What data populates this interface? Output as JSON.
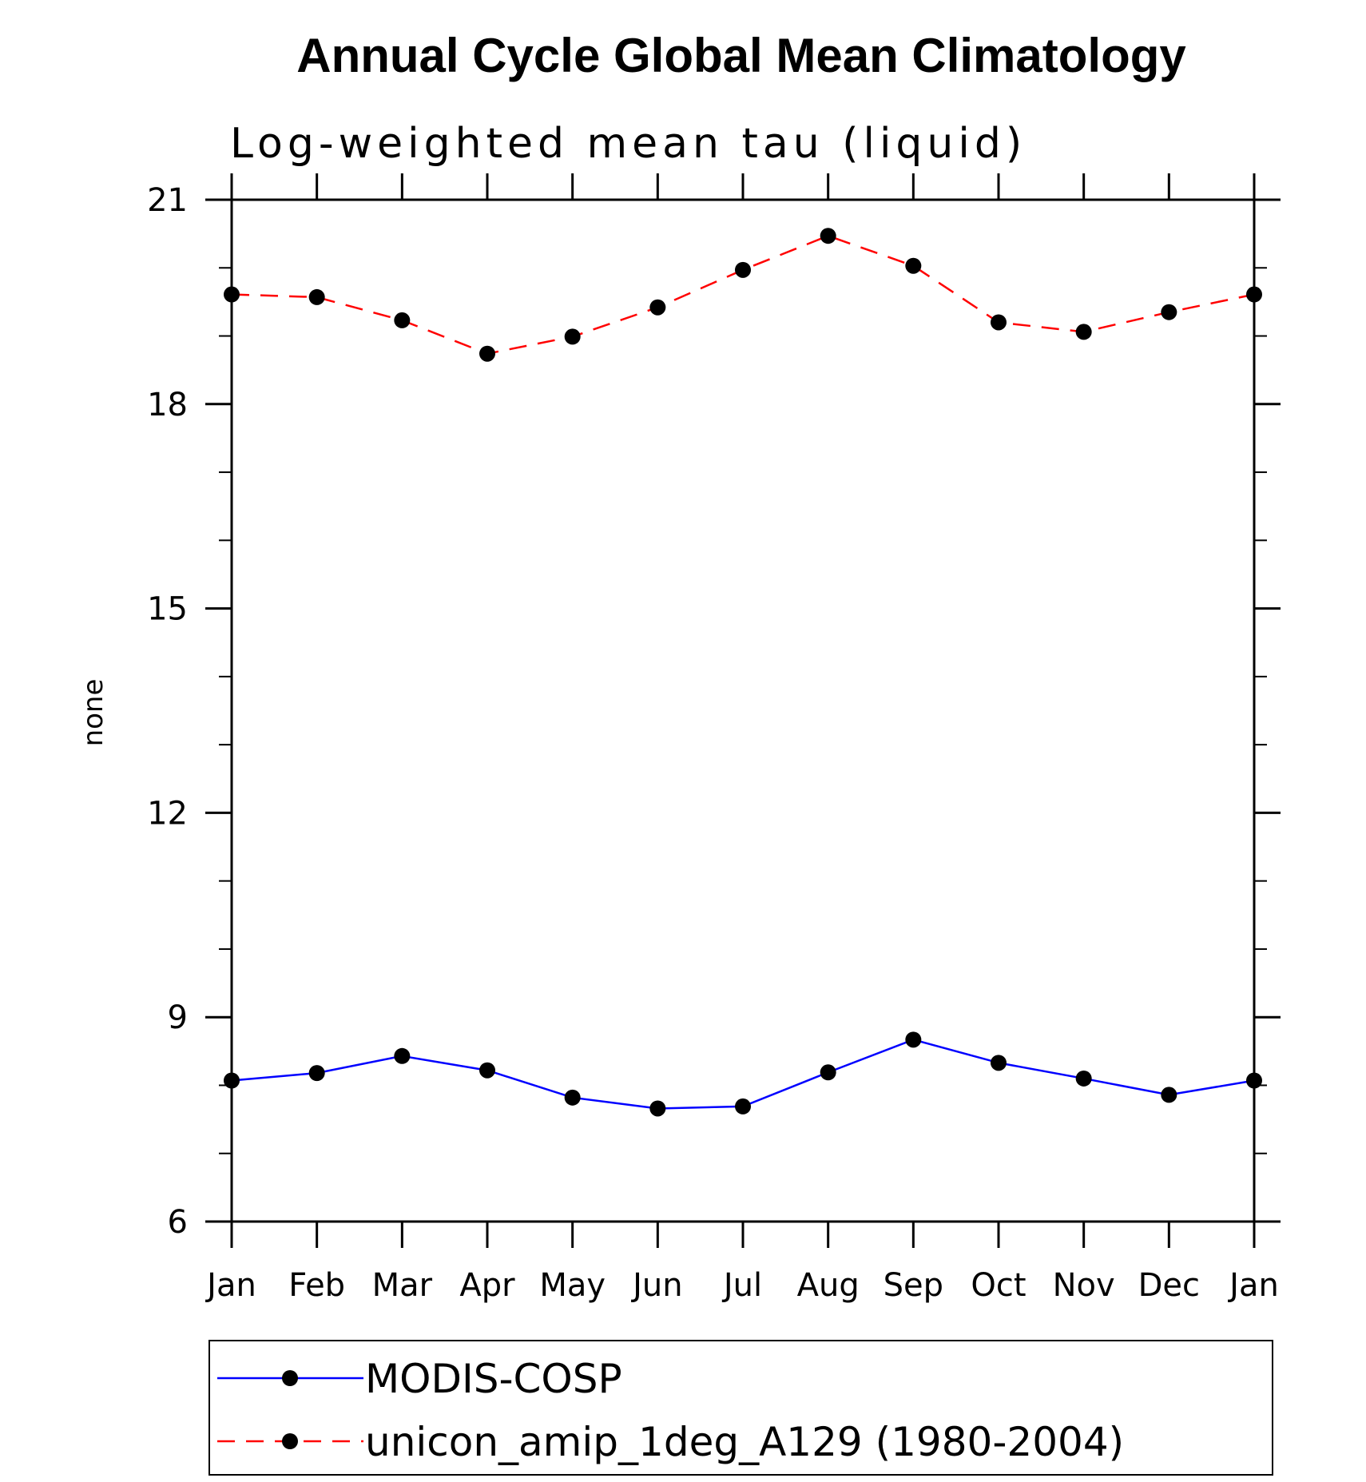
{
  "chart_data": {
    "type": "line",
    "title": "Annual Cycle Global Mean Climatology",
    "subtitle": "Log-weighted mean tau (liquid)",
    "xlabel": "",
    "ylabel": "none",
    "categories": [
      "Jan",
      "Feb",
      "Mar",
      "Apr",
      "May",
      "Jun",
      "Jul",
      "Aug",
      "Sep",
      "Oct",
      "Nov",
      "Dec",
      "Jan"
    ],
    "ylim": [
      6,
      21
    ],
    "yticks": [
      "6",
      "9",
      "12",
      "15",
      "18",
      "21"
    ],
    "series": [
      {
        "name": "MODIS-COSP",
        "color": "#0000ff",
        "dash": "solid",
        "values": [
          8.07,
          8.18,
          8.43,
          8.22,
          7.82,
          7.66,
          7.69,
          8.19,
          8.67,
          8.33,
          8.1,
          7.86,
          8.07
        ]
      },
      {
        "name": "unicon_amip_1deg_A129 (1980-2004)",
        "color": "#ff0000",
        "dash": "dashed",
        "values": [
          19.61,
          19.57,
          19.23,
          18.74,
          18.99,
          19.42,
          19.97,
          20.47,
          20.03,
          19.2,
          19.06,
          19.35,
          19.61
        ]
      }
    ]
  }
}
